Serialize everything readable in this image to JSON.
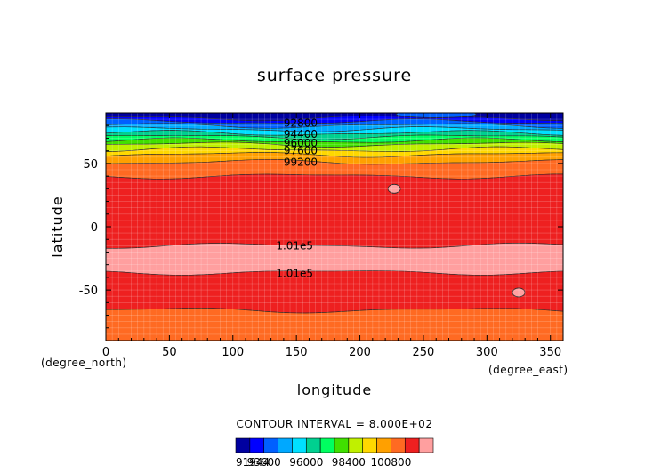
{
  "chart_data": {
    "type": "heatmap",
    "title": "surface pressure",
    "xlabel": "longitude",
    "ylabel": "latitude",
    "x_unit": "(degree_east)",
    "y_unit": "(degree_north)",
    "xlim": [
      0,
      360
    ],
    "ylim": [
      -90,
      90
    ],
    "x_ticks": [
      0,
      50,
      100,
      150,
      200,
      250,
      300,
      350
    ],
    "y_ticks": [
      -50,
      0,
      50
    ],
    "grid": true,
    "contour_interval_text": "CONTOUR INTERVAL = 8.000E+02",
    "contour_labels": [
      {
        "text": "92800",
        "lon": 140,
        "lat": 82
      },
      {
        "text": "94400",
        "lon": 140,
        "lat": 73
      },
      {
        "text": "96000",
        "lon": 140,
        "lat": 66
      },
      {
        "text": "97600",
        "lon": 140,
        "lat": 60
      },
      {
        "text": "99200",
        "lon": 140,
        "lat": 51
      },
      {
        "text": "1.01e5",
        "lon": 134,
        "lat": -15
      },
      {
        "text": "1.01e5",
        "lon": 134,
        "lat": -37
      }
    ],
    "latitude_bands": [
      {
        "lat_top": 90,
        "lat_bottom": 86,
        "value": 91944
      },
      {
        "lat_top": 86,
        "lat_bottom": 83,
        "value": 92800
      },
      {
        "lat_top": 83,
        "lat_bottom": 80,
        "value": 93600
      },
      {
        "lat_top": 80,
        "lat_bottom": 77,
        "value": 94400
      },
      {
        "lat_top": 77,
        "lat_bottom": 74,
        "value": 95200
      },
      {
        "lat_top": 74,
        "lat_bottom": 71,
        "value": 96000
      },
      {
        "lat_top": 71,
        "lat_bottom": 68,
        "value": 96800
      },
      {
        "lat_top": 68,
        "lat_bottom": 65,
        "value": 97600
      },
      {
        "lat_top": 65,
        "lat_bottom": 61,
        "value": 98400
      },
      {
        "lat_top": 61,
        "lat_bottom": 57,
        "value": 99200
      },
      {
        "lat_top": 57,
        "lat_bottom": 51,
        "value": 100000
      },
      {
        "lat_top": 51,
        "lat_bottom": 40,
        "value": 100800
      },
      {
        "lat_top": 40,
        "lat_bottom": -15,
        "value": 101600
      },
      {
        "lat_top": -15,
        "lat_bottom": -36,
        "value": 102400
      },
      {
        "lat_top": -36,
        "lat_bottom": -66,
        "value": 101600
      },
      {
        "lat_top": -66,
        "lat_bottom": -90,
        "value": 100800
      }
    ],
    "features": [
      {
        "kind": "high-spot",
        "lon": 227,
        "lat": 30,
        "value": 102400
      },
      {
        "kind": "high-spot",
        "lon": 325,
        "lat": -52,
        "value": 102400
      },
      {
        "kind": "ridge",
        "lon": 260,
        "lat": 89,
        "value": 93600
      }
    ],
    "colorbar": {
      "levels": [
        91944,
        92800,
        93600,
        94400,
        95200,
        96000,
        96800,
        97600,
        98400,
        99200,
        100000,
        100800,
        101600,
        102400
      ],
      "colors": [
        "#0000a0",
        "#0000ff",
        "#0060ff",
        "#00a8ff",
        "#00e0ff",
        "#00d090",
        "#00ff60",
        "#40e000",
        "#c0f000",
        "#ffd800",
        "#ffa000",
        "#ff6a22",
        "#ee2020",
        "#ff9f9f"
      ],
      "tick_labels": [
        "91944",
        "93600",
        "96000",
        "98400",
        "100800"
      ]
    }
  }
}
